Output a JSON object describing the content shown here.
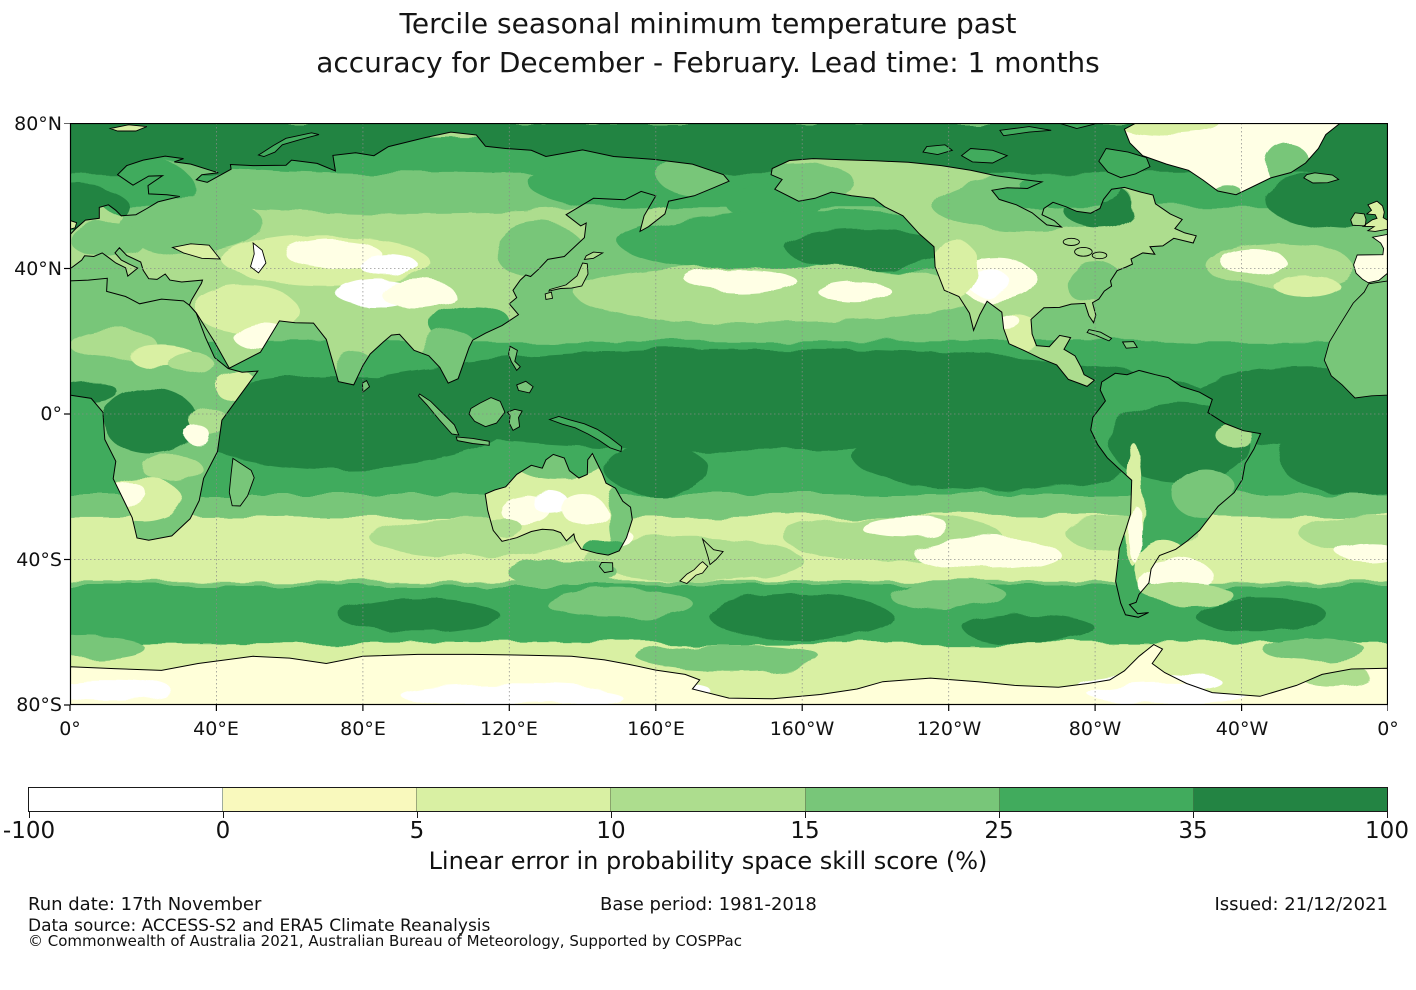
{
  "title": {
    "line1": "Tercile seasonal minimum temperature past",
    "line2": "accuracy for December - February. Lead time: 1 months"
  },
  "map": {
    "y_axis_labels": [
      "80°N",
      "40°N",
      "0°",
      "40°S",
      "80°S"
    ],
    "x_axis_labels": [
      "0°",
      "40°E",
      "80°E",
      "120°E",
      "160°E",
      "160°W",
      "120°W",
      "80°W",
      "40°W",
      "0°"
    ]
  },
  "colorbar": {
    "tick_labels": [
      "-100",
      "0",
      "5",
      "10",
      "15",
      "25",
      "35",
      "100"
    ],
    "segment_colors": [
      "#ffffff",
      "#f9f9bd",
      "#d9f0a3",
      "#addd8e",
      "#78c679",
      "#41ab5d",
      "#238443"
    ],
    "label": "Linear error in probability space skill score (%)"
  },
  "footer": {
    "run_date": "Run date: 17th November",
    "base_period": "Base period: 1981-2018",
    "issued": "Issued: 21/12/2021",
    "data_source": "Data source: ACCESS-S2 and ERA5 Climate Reanalysis",
    "copyright": "© Commonwealth of Australia 2021, Australian Bureau of Meteorology, Supported by COSPPac"
  },
  "chart_data": {
    "type": "heatmap",
    "title": "Tercile seasonal minimum temperature past accuracy for December - February. Lead time: 1 months",
    "geography": "Global equirectangular world map, longitude 0° eastward through 180° back to 0° (Pacific-centered), latitude 80°N to 80°S",
    "x_tick_labels": [
      "0°",
      "40°E",
      "80°E",
      "120°E",
      "160°E",
      "160°W",
      "120°W",
      "80°W",
      "40°W",
      "0°"
    ],
    "y_tick_labels": [
      "80°N",
      "40°N",
      "0°",
      "40°S",
      "80°S"
    ],
    "grid": "dotted graticule every 40 degrees",
    "colorbar": {
      "label": "Linear error in probability space skill score (%)",
      "levels": [
        -100,
        0,
        5,
        10,
        15,
        25,
        35,
        100
      ],
      "colors": [
        "#ffffff",
        "#f9f9bd",
        "#d9f0a3",
        "#addd8e",
        "#78c679",
        "#41ab5d",
        "#238443"
      ]
    },
    "pattern_summary": [
      "Highest skill (>35, dark green) in a broad equatorial band, widest over the central/eastern Pacific, tropical Indian Ocean, tropical Atlantic and the Amazon basin",
      "High skill (25-35) across the Arctic, northern high-latitude oceans and northeastern Canada",
      "Low skill (0-10, pale yellow) over mid-latitude continental interiors (central Asia, central North America) and a zonal band near 30-45°S",
      "Moderate skill (15-25) over the Southern Ocean near 50-60°S with scattered 25-35 patches",
      "Pale yellow to white (near zero or negative) values along the Antarctic margin and over interior Antarctica, Greenland interior pale"
    ]
  }
}
